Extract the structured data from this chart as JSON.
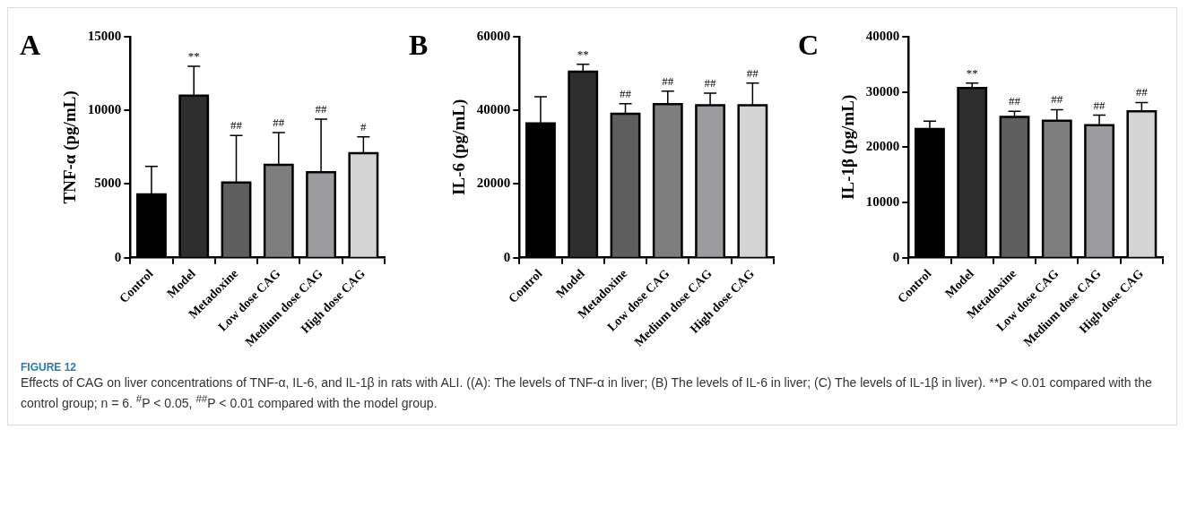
{
  "chart_data": [
    {
      "type": "bar",
      "title": "A",
      "ylabel": "TNF-α (pg/mL)",
      "categories": [
        "Control",
        "Model",
        "Metadoxine",
        "Low dose CAG",
        "Medium dose CAG",
        "High dose CAG"
      ],
      "values": [
        4300,
        11000,
        5100,
        6300,
        5800,
        7100
      ],
      "errors": [
        1900,
        2000,
        3200,
        2200,
        3600,
        1100
      ],
      "colors": [
        "#000000",
        "#2e2e2e",
        "#5e5e5e",
        "#7e7e7e",
        "#9c9ca0",
        "#d4d4d4"
      ],
      "ylim": [
        0,
        15000
      ],
      "yticks": [
        0,
        5000,
        10000,
        15000
      ],
      "annotations": [
        {
          "text": "**",
          "x": "Model",
          "y": 13000
        },
        {
          "text": "##",
          "x": "Metadoxine",
          "y": 8300
        },
        {
          "text": "##",
          "x": "Low dose CAG",
          "y": 8500
        },
        {
          "text": "##",
          "x": "Medium dose CAG",
          "y": 9400
        },
        {
          "text": "#",
          "x": "High dose CAG",
          "y": 8200
        },
        "FIGURE 12",
        "Effects of CAG on liver concentrations of TNF-α, IL-6, and IL-1β in rats with ALI. ((A): The levels of TNF-α in liver; (B) The levels of IL-6 in liver; (C) The levels of IL-1β in liver). **P < 0.01 compared with the control group; n = 6. $^{#}$P < 0.05, $^{##}$P < 0.01 compared with the model group."
      ]
    },
    {
      "type": "bar",
      "title": "B",
      "ylabel": "IL-6 (pg/mL)",
      "categories": [
        "Control",
        "Model",
        "Metadoxine",
        "Low dose CAG",
        "Medium dose CAG",
        "High dose CAG"
      ],
      "values": [
        36500,
        50500,
        39100,
        41700,
        41400,
        41400
      ],
      "errors": [
        7200,
        2000,
        2700,
        3500,
        3300,
        6000
      ],
      "colors": [
        "#000000",
        "#2e2e2e",
        "#5e5e5e",
        "#7e7e7e",
        "#9c9ca0",
        "#d4d4d4"
      ],
      "ylim": [
        0,
        60000
      ],
      "yticks": [
        0,
        20000,
        40000,
        60000
      ],
      "annotations": [
        {
          "text": "**",
          "x": "Model",
          "y": 52500
        },
        {
          "text": "##",
          "x": "Metadoxine",
          "y": 41800
        },
        {
          "text": "##",
          "x": "Low dose CAG",
          "y": 45200
        },
        {
          "text": "##",
          "x": "Medium dose CAG",
          "y": 44700
        },
        {
          "text": "##",
          "x": "High dose CAG",
          "y": 47400
        }
      ]
    },
    {
      "type": "bar",
      "title": "C",
      "ylabel": "IL-1β (pg/mL)",
      "categories": [
        "Control",
        "Model",
        "Metadoxine",
        "Low dose CAG",
        "Medium dose CAG",
        "High dose CAG"
      ],
      "values": [
        23300,
        30700,
        25500,
        24800,
        24000,
        26500
      ],
      "errors": [
        1400,
        900,
        1000,
        2000,
        1800,
        1600
      ],
      "colors": [
        "#000000",
        "#2e2e2e",
        "#5e5e5e",
        "#7e7e7e",
        "#9c9ca0",
        "#d4d4d4"
      ],
      "ylim": [
        0,
        40000
      ],
      "yticks": [
        0,
        10000,
        20000,
        30000,
        40000
      ],
      "annotations": [
        {
          "text": "**",
          "x": "Model",
          "y": 31600
        },
        {
          "text": "##",
          "x": "Metadoxine",
          "y": 26500
        },
        {
          "text": "##",
          "x": "Low dose CAG",
          "y": 26800
        },
        {
          "text": "##",
          "x": "Medium dose CAG",
          "y": 25800
        },
        {
          "text": "##",
          "x": "High dose CAG",
          "y": 28100
        }
      ]
    }
  ]
}
